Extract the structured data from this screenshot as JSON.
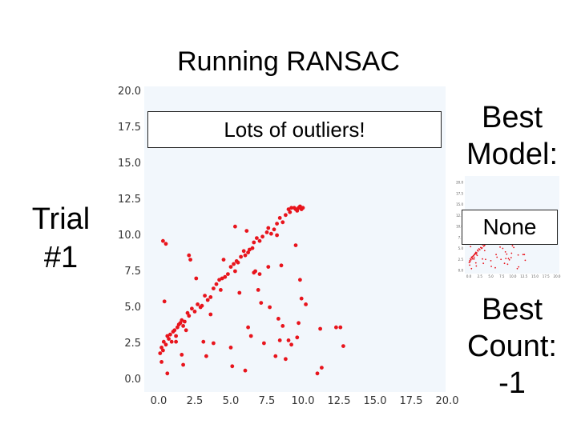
{
  "slide": {
    "title": "Running RANSAC",
    "trial_label": "Trial #1",
    "best_model_label": "Best Model:",
    "best_model_value": "None",
    "best_count_label": "Best Count: -1",
    "callout": "Lots of outliers!"
  },
  "colors": {
    "point": "#e8141c",
    "plot_bg": "#f2f7fc"
  },
  "chart_data": {
    "type": "scatter",
    "title": "",
    "xlabel": "",
    "ylabel": "",
    "xlim": [
      -1,
      20
    ],
    "ylim": [
      -1,
      20
    ],
    "xticks": [
      "0.0",
      "2.5",
      "5.0",
      "7.5",
      "10.0",
      "12.5",
      "15.0",
      "17.5",
      "20.0"
    ],
    "yticks": [
      "0.0",
      "2.5",
      "5.0",
      "7.5",
      "10.0",
      "12.5",
      "15.0",
      "17.5",
      "20.0"
    ],
    "grid": false,
    "series": [
      {
        "x": [
          0.1,
          0.2,
          0.3,
          0.35,
          0.5,
          0.6,
          0.7,
          0.8,
          0.9,
          1.0,
          1.1,
          1.2,
          1.3,
          1.4,
          1.5,
          1.6,
          1.7,
          1.8,
          1.9,
          2.0,
          2.1,
          2.3,
          2.5,
          2.7,
          2.9,
          3.0,
          3.2,
          3.4,
          3.6,
          3.8,
          4.0,
          4.2,
          4.3,
          4.4,
          4.6,
          4.8,
          5.0,
          5.2,
          5.4,
          5.5,
          5.7,
          5.9,
          6.0,
          6.2,
          6.3,
          6.5,
          6.6,
          6.8,
          7.0,
          7.2,
          7.5,
          7.6,
          7.8,
          8.0,
          8.2,
          8.4,
          8.6,
          8.8,
          9.0,
          9.1,
          9.2,
          9.4,
          9.5,
          9.6,
          9.7,
          9.8,
          9.9,
          10.0,
          0.3,
          0.5,
          0.4,
          0.2,
          0.6,
          1.2,
          1.6,
          1.7,
          2.1,
          2.2,
          2.6,
          3.1,
          3.3,
          3.6,
          3.8,
          4.5,
          5.0,
          5.1,
          5.3,
          5.3,
          5.6,
          6.0,
          6.1,
          6.2,
          6.4,
          6.6,
          6.7,
          6.9,
          7.0,
          7.1,
          7.3,
          7.6,
          7.7,
          8.1,
          8.2,
          8.3,
          8.4,
          8.5,
          8.6,
          8.8,
          9.0,
          9.2,
          9.5,
          9.6,
          9.7,
          9.8,
          9.9,
          10.2,
          11.0,
          11.2,
          11.3,
          12.3,
          12.6,
          12.8
        ],
        "y": [
          1.8,
          2.2,
          2.0,
          2.6,
          2.4,
          3.0,
          2.8,
          3.1,
          2.6,
          3.3,
          3.4,
          3.0,
          3.6,
          3.8,
          3.9,
          4.1,
          3.7,
          4.0,
          3.4,
          4.6,
          4.4,
          4.9,
          4.7,
          5.2,
          5.0,
          5.1,
          5.8,
          5.5,
          5.7,
          6.3,
          6.6,
          6.9,
          6.2,
          7.0,
          7.1,
          7.3,
          7.8,
          8.0,
          8.2,
          8.1,
          8.5,
          8.9,
          8.6,
          8.8,
          9.0,
          9.1,
          9.5,
          9.8,
          9.6,
          9.9,
          10.2,
          10.5,
          10.1,
          10.4,
          10.8,
          11.2,
          10.9,
          11.4,
          11.8,
          11.6,
          11.9,
          11.9,
          11.8,
          11.7,
          11.9,
          12.0,
          11.8,
          11.9,
          9.6,
          9.4,
          5.4,
          1.2,
          0.4,
          2.6,
          1.7,
          1.0,
          8.6,
          8.3,
          7.0,
          2.6,
          1.6,
          4.5,
          2.5,
          8.3,
          2.2,
          0.9,
          10.6,
          7.5,
          6.0,
          0.6,
          10.3,
          3.6,
          3.0,
          7.4,
          7.5,
          6.2,
          7.3,
          5.3,
          2.5,
          7.8,
          5.0,
          1.6,
          10.0,
          4.2,
          2.7,
          7.9,
          3.7,
          1.4,
          2.7,
          2.4,
          9.3,
          2.9,
          3.9,
          6.9,
          5.6,
          5.2,
          0.4,
          3.5,
          0.8,
          3.6,
          3.6,
          2.3
        ]
      }
    ]
  },
  "mini_chart": {
    "yticks": [
      "20.0",
      "17.5",
      "15.0",
      "12.5",
      "10.0",
      "7.5",
      "5.0",
      "2.5",
      "0.0"
    ],
    "xticks": [
      "0.0",
      "2.5",
      "5.0",
      "7.5",
      "10.0",
      "12.5",
      "15.0",
      "17.5",
      "20.0"
    ]
  }
}
